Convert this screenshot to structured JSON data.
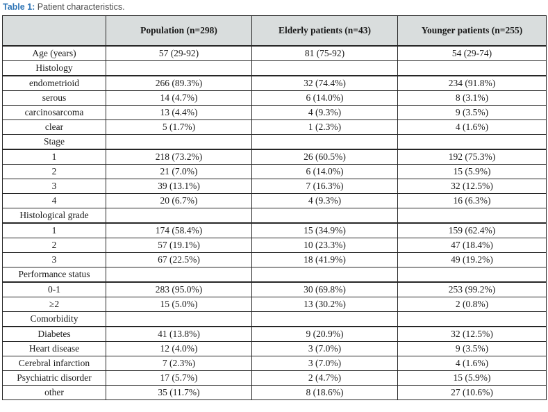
{
  "caption": {
    "label": "Table 1:",
    "text": "Patient characteristics."
  },
  "colors": {
    "caption_label": "#2e74b5",
    "caption_text": "#4a4a4a",
    "header_background": "#d9dddd",
    "border": "#262626",
    "cell_text": "#1a1a1a"
  },
  "table": {
    "columns": [
      "Population  (n=298)",
      "Elderly patients (n=43)",
      "Younger patients (n=255)"
    ],
    "rows": [
      {
        "type": "data",
        "label": "Age (years)",
        "values": [
          "57 (29-92)",
          "81 (75-92)",
          "54 (29-74)"
        ]
      },
      {
        "type": "section",
        "label": "Histology",
        "values": [
          "",
          "",
          ""
        ]
      },
      {
        "type": "data",
        "label": "endometrioid",
        "values": [
          "266 (89.3%)",
          "32 (74.4%)",
          "234 (91.8%)"
        ]
      },
      {
        "type": "data",
        "label": "serous",
        "values": [
          "14 (4.7%)",
          "6 (14.0%)",
          "8 (3.1%)"
        ]
      },
      {
        "type": "data",
        "label": "carcinosarcoma",
        "values": [
          "13 (4.4%)",
          "4 (9.3%)",
          "9 (3.5%)"
        ]
      },
      {
        "type": "data",
        "label": "clear",
        "values": [
          "5 (1.7%)",
          "1 (2.3%)",
          "4 (1.6%)"
        ]
      },
      {
        "type": "section",
        "label": "Stage",
        "values": [
          "",
          "",
          ""
        ]
      },
      {
        "type": "data",
        "label": "1",
        "values": [
          "218 (73.2%)",
          "26 (60.5%)",
          "192 (75.3%)"
        ]
      },
      {
        "type": "data",
        "label": "2",
        "values": [
          "21 (7.0%)",
          "6 (14.0%)",
          "15 (5.9%)"
        ]
      },
      {
        "type": "data",
        "label": "3",
        "values": [
          "39 (13.1%)",
          "7 (16.3%)",
          "32 (12.5%)"
        ]
      },
      {
        "type": "data",
        "label": "4",
        "values": [
          "20 (6.7%)",
          "4 (9.3%)",
          "16 (6.3%)"
        ]
      },
      {
        "type": "section",
        "label": "Histological grade",
        "values": [
          "",
          "",
          ""
        ]
      },
      {
        "type": "data",
        "label": "1",
        "values": [
          "174 (58.4%)",
          "15 (34.9%)",
          "159 (62.4%)"
        ]
      },
      {
        "type": "data",
        "label": "2",
        "values": [
          "57 (19.1%)",
          "10 (23.3%)",
          "47 (18.4%)"
        ]
      },
      {
        "type": "data",
        "label": "3",
        "values": [
          "67 (22.5%)",
          "18 (41.9%)",
          "49 (19.2%)"
        ]
      },
      {
        "type": "section",
        "label": "Performance status",
        "values": [
          "",
          "",
          ""
        ]
      },
      {
        "type": "data",
        "label": "0-1",
        "values": [
          "283 (95.0%)",
          "30 (69.8%)",
          "253 (99.2%)"
        ]
      },
      {
        "type": "data",
        "label": "≥2",
        "values": [
          "15 (5.0%)",
          "13 (30.2%)",
          "2 (0.8%)"
        ]
      },
      {
        "type": "section",
        "label": "Comorbidity",
        "values": [
          "",
          "",
          ""
        ]
      },
      {
        "type": "data",
        "label": "Diabetes",
        "values": [
          "41 (13.8%)",
          "9 (20.9%)",
          "32 (12.5%)"
        ]
      },
      {
        "type": "data",
        "label": "Heart disease",
        "values": [
          "12 (4.0%)",
          "3 (7.0%)",
          "9 (3.5%)"
        ]
      },
      {
        "type": "data",
        "label": "Cerebral infarction",
        "values": [
          "7 (2.3%)",
          "3 (7.0%)",
          "4 (1.6%)"
        ]
      },
      {
        "type": "data",
        "label": "Psychiatric disorder",
        "values": [
          "17 (5.7%)",
          "2 (4.7%)",
          "15 (5.9%)"
        ]
      },
      {
        "type": "data",
        "label": "other",
        "values": [
          "35 (11.7%)",
          "8 (18.6%)",
          "27 (10.6%)"
        ]
      }
    ]
  }
}
